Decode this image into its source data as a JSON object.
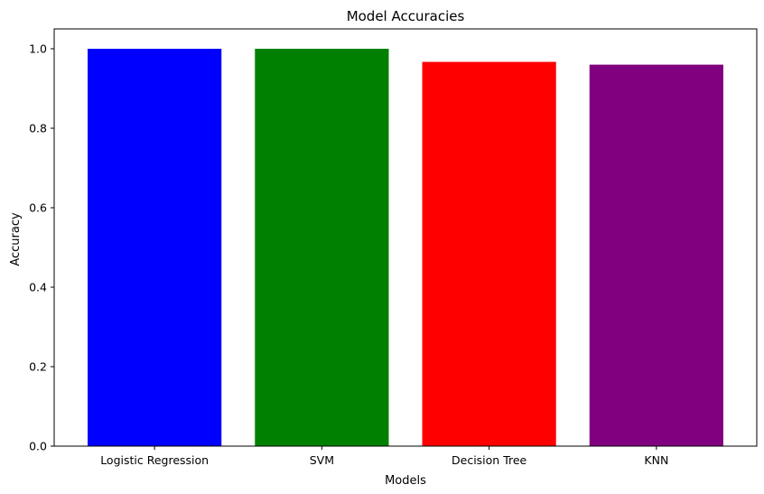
{
  "chart_data": {
    "type": "bar",
    "title": "Model Accuracies",
    "xlabel": "Models",
    "ylabel": "Accuracy",
    "categories": [
      "Logistic Regression",
      "SVM",
      "Decision Tree",
      "KNN"
    ],
    "values": [
      1.0,
      1.0,
      0.967,
      0.96
    ],
    "colors": [
      "#0000ff",
      "#008000",
      "#ff0000",
      "#800080"
    ],
    "ylim": [
      0,
      1.05
    ],
    "yticks": [
      "0.0",
      "0.2",
      "0.4",
      "0.6",
      "0.8",
      "1.0"
    ],
    "grid": false,
    "legend": "none"
  }
}
